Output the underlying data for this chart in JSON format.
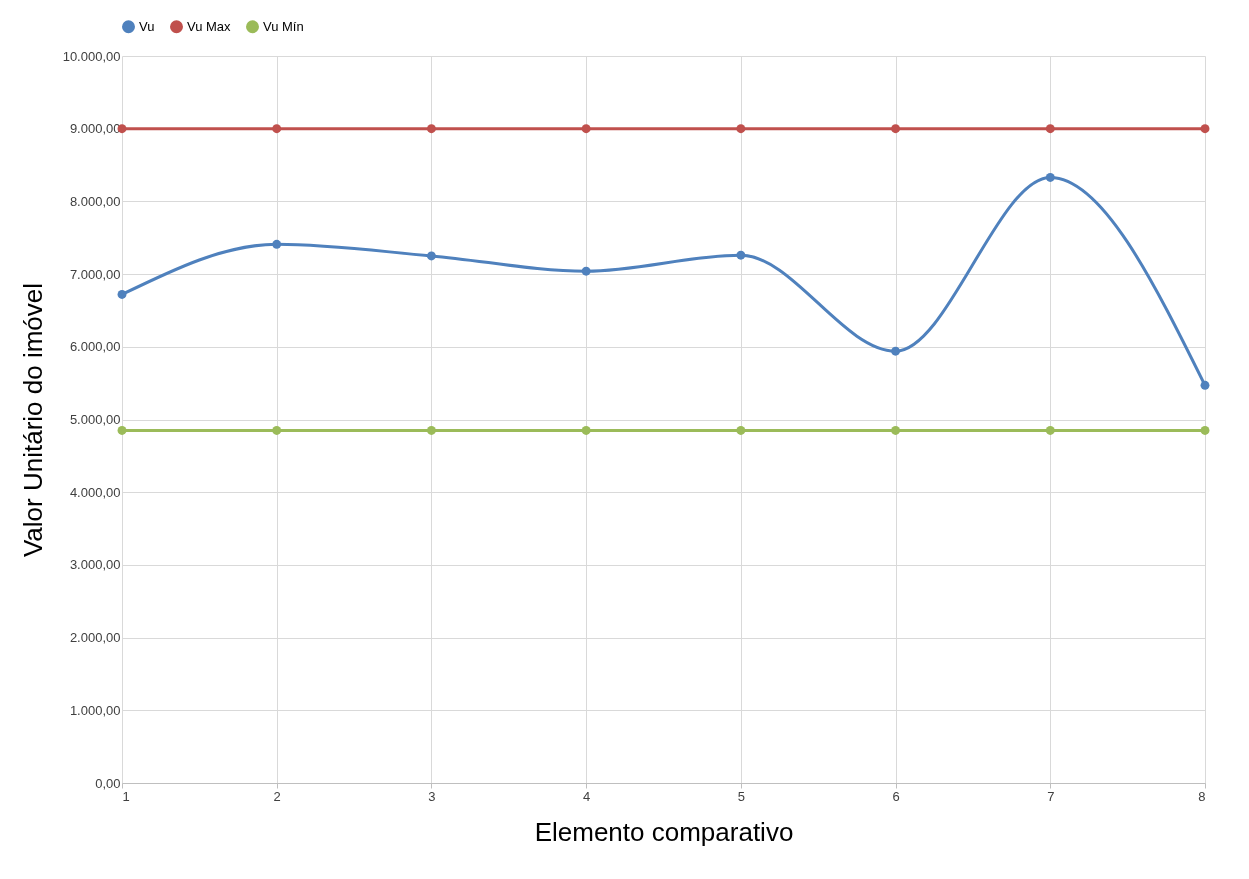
{
  "chart_data": {
    "type": "line",
    "xlabel": "Elemento comparativo",
    "ylabel": "Valor Unitário do imóvel",
    "x": [
      1,
      2,
      3,
      4,
      5,
      6,
      7,
      8
    ],
    "series": [
      {
        "name": "Vu",
        "color": "#4f81bd",
        "values": [
          6720,
          7410,
          7250,
          7040,
          7260,
          5940,
          8330,
          5470
        ]
      },
      {
        "name": "Vu Max",
        "color": "#c0504d",
        "values": [
          9000,
          9000,
          9000,
          9000,
          9000,
          9000,
          9000,
          9000
        ]
      },
      {
        "name": "Vu Mín",
        "color": "#9bbb59",
        "values": [
          4850,
          4850,
          4850,
          4850,
          4850,
          4850,
          4850,
          4850
        ]
      }
    ],
    "xlim": [
      1,
      8
    ],
    "xticks": [
      1,
      2,
      3,
      4,
      5,
      6,
      7,
      8
    ],
    "ylim": [
      0,
      10000
    ],
    "yticks": [
      {
        "value": 0,
        "label": "0,00"
      },
      {
        "value": 1000,
        "label": "1.000,00"
      },
      {
        "value": 2000,
        "label": "2.000,00"
      },
      {
        "value": 3000,
        "label": "3.000,00"
      },
      {
        "value": 4000,
        "label": "4.000,00"
      },
      {
        "value": 5000,
        "label": "5.000,00"
      },
      {
        "value": 6000,
        "label": "6.000,00"
      },
      {
        "value": 7000,
        "label": "7.000,00"
      },
      {
        "value": 8000,
        "label": "8.000,00"
      },
      {
        "value": 9000,
        "label": "9.000,00"
      },
      {
        "value": 10000,
        "label": "10.000,00"
      }
    ],
    "grid": true,
    "legend": "top",
    "marker": "circle",
    "line_style": "solid"
  }
}
